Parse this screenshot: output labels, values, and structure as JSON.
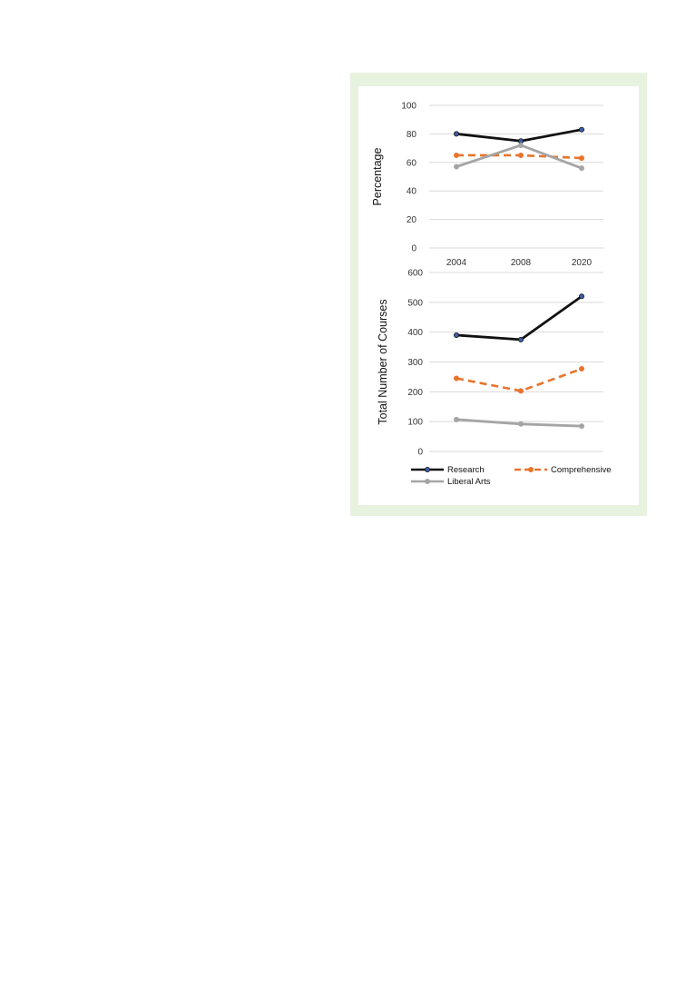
{
  "chart_data": [
    {
      "type": "line",
      "ylabel": "Percentage",
      "xlabel": "",
      "ylim": [
        0,
        100
      ],
      "yticks": [
        0,
        20,
        40,
        60,
        80,
        100
      ],
      "categories": [
        "2004",
        "2008",
        "2020"
      ],
      "grid": true,
      "series": [
        {
          "name": "Research",
          "values": [
            80,
            75,
            83
          ],
          "color": "#111111",
          "dash": "solid"
        },
        {
          "name": "Comprehensive",
          "values": [
            65,
            65,
            63
          ],
          "color": "#e8742c",
          "dash": "dashed"
        },
        {
          "name": "Liberal Arts",
          "values": [
            57,
            72,
            56
          ],
          "color": "#a5a5a5",
          "dash": "solid"
        }
      ]
    },
    {
      "type": "line",
      "ylabel": "Total Number of Courses",
      "xlabel": "",
      "ylim": [
        0,
        600
      ],
      "yticks": [
        0,
        100,
        200,
        300,
        400,
        500,
        600
      ],
      "categories": [
        "2004",
        "2008",
        "2020"
      ],
      "grid": true,
      "legend": "bottom",
      "series": [
        {
          "name": "Research",
          "values": [
            390,
            375,
            520
          ],
          "color": "#111111",
          "dash": "solid"
        },
        {
          "name": "Comprehensive",
          "values": [
            245,
            203,
            277
          ],
          "color": "#e8742c",
          "dash": "dashed"
        },
        {
          "name": "Liberal Arts",
          "values": [
            107,
            92,
            85
          ],
          "color": "#a5a5a5",
          "dash": "solid"
        }
      ]
    }
  ]
}
